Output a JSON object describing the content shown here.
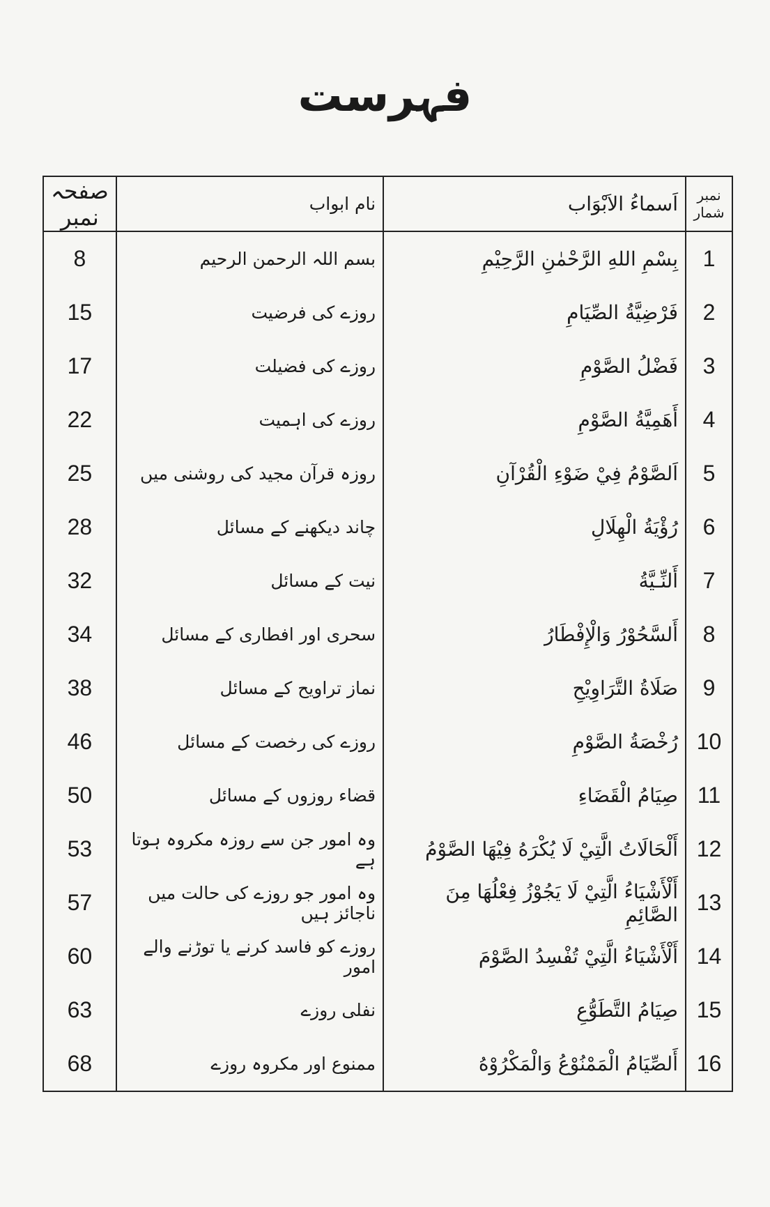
{
  "title": "فہرست",
  "headers": {
    "page": "صفحہ نمبر",
    "urdu": "نام ابواب",
    "arabic": "اَسماءُ الاَبْوَاب",
    "number": "نمبر شمار"
  },
  "rows": [
    {
      "no": "1",
      "arabic": "بِسْمِ اللهِ الرَّحْمٰنِ الرَّحِيْمِ",
      "urdu": "بسم اللہ الرحمن الرحیم",
      "page": "8"
    },
    {
      "no": "2",
      "arabic": "فَرْضِيَّةُ الصِّيَامِ",
      "urdu": "روزے کی فرضیت",
      "page": "15"
    },
    {
      "no": "3",
      "arabic": "فَضْلُ الصَّوْمِ",
      "urdu": "روزے کی فضیلت",
      "page": "17"
    },
    {
      "no": "4",
      "arabic": "أَهَمِيَّةُ الصَّوْمِ",
      "urdu": "روزے کی اہمیت",
      "page": "22"
    },
    {
      "no": "5",
      "arabic": "اَلصَّوْمُ فِيْ ضَوْءِ الْقُرْآنِ",
      "urdu": "روزہ قرآن مجید کی روشنی میں",
      "page": "25"
    },
    {
      "no": "6",
      "arabic": "رُؤْيَةُ الْهِلَالِ",
      "urdu": "چاند دیکھنے کے مسائل",
      "page": "28"
    },
    {
      "no": "7",
      "arabic": "أَلنِّـيَّةُ",
      "urdu": "نیت کے مسائل",
      "page": "32"
    },
    {
      "no": "8",
      "arabic": "أَلسَّحُوْرُ وَالْإِفْطَارُ",
      "urdu": "سحری اور افطاری کے مسائل",
      "page": "34"
    },
    {
      "no": "9",
      "arabic": "صَلَاةُ التَّرَاوِيْحِ",
      "urdu": "نماز تراویح کے مسائل",
      "page": "38"
    },
    {
      "no": "10",
      "arabic": "رُخْصَةُ الصَّوْمِ",
      "urdu": "روزے کی رخصت کے مسائل",
      "page": "46"
    },
    {
      "no": "11",
      "arabic": "صِيَامُ الْقَضَاءِ",
      "urdu": "قضاء روزوں کے مسائل",
      "page": "50"
    },
    {
      "no": "12",
      "arabic": "أَلْحَالَاتُ الَّتِيْ لَا يُكْرَهُ فِيْهَا الصَّوْمُ",
      "urdu": "وہ امور جن سے روزہ مکروہ ہوتا ہے",
      "page": "53"
    },
    {
      "no": "13",
      "arabic": "أَلْأَشْيَاءُ الَّتِيْ لَا يَجُوْزُ فِعْلُهَا مِنَ الصَّائِمِ",
      "urdu": "وہ امور جو روزے کی حالت میں ناجائز ہیں",
      "page": "57"
    },
    {
      "no": "14",
      "arabic": "أَلْأَشْيَاءُ الَّتِيْ تُفْسِدُ الصَّوْمَ",
      "urdu": "روزے کو فاسد کرنے یا توڑنے والے امور",
      "page": "60"
    },
    {
      "no": "15",
      "arabic": "صِيَامُ التَّطَوُّعِ",
      "urdu": "نفلی روزے",
      "page": "63"
    },
    {
      "no": "16",
      "arabic": "أَلصِّيَامُ الْمَمْنُوْعُ وَالْمَكْرُوْهُ",
      "urdu": "ممنوع اور مکروہ روزے",
      "page": "68"
    }
  ]
}
